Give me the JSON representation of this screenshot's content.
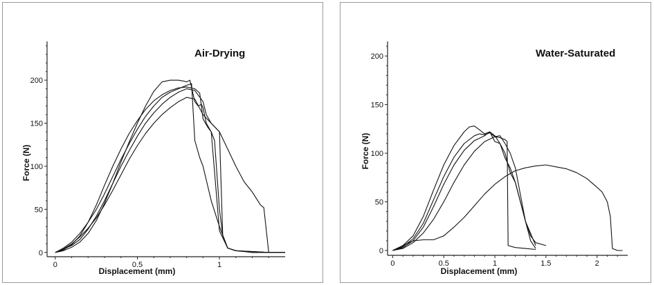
{
  "chart_data": [
    {
      "type": "line",
      "title": "Air-Drying",
      "xlabel": "Displacement (mm)",
      "ylabel": "Force (N)",
      "xlim": [
        -0.05,
        1.4
      ],
      "ylim": [
        -5,
        245
      ],
      "xticks": [
        0,
        0.5,
        1
      ],
      "xtick_labels": [
        "0",
        "0.5",
        "1"
      ],
      "yticks": [
        0,
        50,
        100,
        150,
        200
      ],
      "ytick_labels": [
        "0",
        "50",
        "100",
        "150",
        "200"
      ],
      "series": [
        {
          "x": [
            0,
            0.05,
            0.1,
            0.15,
            0.2,
            0.25,
            0.3,
            0.35,
            0.4,
            0.45,
            0.5,
            0.55,
            0.6,
            0.65,
            0.7,
            0.75,
            0.78,
            0.8,
            0.82,
            0.85,
            0.87,
            0.89,
            0.9,
            0.92,
            0.95,
            1.0,
            1.05,
            1.1,
            1.15,
            1.2,
            1.25,
            1.3,
            1.4
          ],
          "y": [
            0,
            2,
            6,
            12,
            22,
            37,
            57,
            80,
            105,
            128,
            150,
            170,
            187,
            198,
            200,
            200,
            199,
            198,
            200,
            175,
            170,
            172,
            168,
            150,
            140,
            25,
            5,
            2,
            1,
            0,
            0,
            0,
            0
          ]
        },
        {
          "x": [
            0,
            0.05,
            0.1,
            0.15,
            0.2,
            0.25,
            0.3,
            0.35,
            0.4,
            0.45,
            0.5,
            0.55,
            0.6,
            0.65,
            0.7,
            0.75,
            0.8,
            0.85,
            0.88,
            0.9,
            0.93,
            0.95,
            0.97,
            1.0,
            1.02,
            1.05,
            1.1,
            1.15,
            1.2,
            1.3,
            1.4
          ],
          "y": [
            0,
            3,
            9,
            19,
            35,
            55,
            78,
            100,
            120,
            138,
            153,
            166,
            176,
            183,
            188,
            191,
            192,
            190,
            185,
            155,
            145,
            140,
            130,
            50,
            20,
            5,
            2,
            1,
            0,
            0,
            0
          ]
        },
        {
          "x": [
            0,
            0.05,
            0.1,
            0.15,
            0.2,
            0.25,
            0.3,
            0.35,
            0.4,
            0.45,
            0.5,
            0.55,
            0.6,
            0.65,
            0.7,
            0.75,
            0.8,
            0.85,
            0.9,
            0.95,
            1.0,
            1.05,
            1.1,
            1.15,
            1.2,
            1.25,
            1.27,
            1.3,
            1.35,
            1.4
          ],
          "y": [
            0,
            4,
            10,
            18,
            28,
            40,
            55,
            72,
            90,
            108,
            124,
            138,
            150,
            160,
            168,
            175,
            180,
            178,
            160,
            150,
            140,
            120,
            100,
            82,
            70,
            55,
            52,
            0,
            0,
            0
          ]
        },
        {
          "x": [
            0,
            0.05,
            0.1,
            0.15,
            0.2,
            0.25,
            0.3,
            0.35,
            0.4,
            0.45,
            0.5,
            0.55,
            0.6,
            0.65,
            0.7,
            0.75,
            0.8,
            0.83,
            0.85,
            0.88,
            0.9,
            0.95,
            1.0,
            1.05,
            1.1,
            1.2,
            1.3,
            1.4
          ],
          "y": [
            0,
            5,
            12,
            22,
            35,
            50,
            68,
            88,
            108,
            126,
            143,
            158,
            170,
            180,
            186,
            190,
            194,
            196,
            130,
            110,
            100,
            60,
            30,
            5,
            2,
            1,
            0,
            0
          ]
        },
        {
          "x": [
            0,
            0.05,
            0.1,
            0.15,
            0.2,
            0.25,
            0.3,
            0.35,
            0.4,
            0.45,
            0.5,
            0.55,
            0.6,
            0.65,
            0.7,
            0.75,
            0.8,
            0.85,
            0.9,
            0.92,
            0.95,
            1.0,
            1.02,
            1.05,
            1.1,
            1.2,
            1.3,
            1.4
          ],
          "y": [
            0,
            4,
            8,
            15,
            27,
            42,
            60,
            80,
            100,
            118,
            135,
            150,
            162,
            172,
            180,
            186,
            190,
            188,
            175,
            160,
            150,
            140,
            20,
            5,
            2,
            1,
            0,
            0
          ]
        }
      ]
    },
    {
      "type": "line",
      "title": "Water-Saturated",
      "xlabel": "Displacement (mm)",
      "ylabel": "Force (N)",
      "xlim": [
        -0.05,
        2.3
      ],
      "ylim": [
        -5,
        215
      ],
      "xticks": [
        0,
        0.5,
        1,
        1.5,
        2
      ],
      "xtick_labels": [
        "0",
        "0.5",
        "1",
        "1.5",
        "2"
      ],
      "yticks": [
        0,
        50,
        100,
        150,
        200
      ],
      "ytick_labels": [
        "0",
        "50",
        "100",
        "150",
        "200"
      ],
      "series": [
        {
          "x": [
            0,
            0.1,
            0.2,
            0.3,
            0.4,
            0.5,
            0.6,
            0.7,
            0.75,
            0.8,
            0.85,
            0.9,
            0.95,
            1.0,
            1.05,
            1.1,
            1.15,
            1.2,
            1.25,
            1.3,
            1.35,
            1.4
          ],
          "y": [
            0,
            5,
            15,
            35,
            62,
            88,
            108,
            122,
            127,
            128,
            124,
            120,
            122,
            118,
            110,
            95,
            85,
            70,
            50,
            30,
            10,
            2
          ]
        },
        {
          "x": [
            0,
            0.1,
            0.2,
            0.3,
            0.4,
            0.5,
            0.6,
            0.7,
            0.8,
            0.85,
            0.9,
            0.95,
            1.0,
            1.05,
            1.1,
            1.12,
            1.13,
            1.2,
            1.3,
            1.4
          ],
          "y": [
            0,
            4,
            12,
            28,
            52,
            76,
            96,
            110,
            118,
            120,
            119,
            121,
            117,
            116,
            114,
            112,
            5,
            3,
            2,
            1
          ]
        },
        {
          "x": [
            0,
            0.1,
            0.2,
            0.3,
            0.4,
            0.5,
            0.6,
            0.7,
            0.8,
            0.9,
            0.95,
            1.0,
            1.05,
            1.1,
            1.15,
            1.2,
            1.25,
            1.3,
            1.35,
            1.4,
            1.5
          ],
          "y": [
            0,
            3,
            10,
            24,
            45,
            68,
            88,
            103,
            113,
            118,
            122,
            112,
            110,
            100,
            80,
            70,
            50,
            30,
            15,
            8,
            5
          ]
        },
        {
          "x": [
            0,
            0.1,
            0.2,
            0.3,
            0.4,
            0.5,
            0.6,
            0.7,
            0.8,
            0.9,
            1.0,
            1.05,
            1.1,
            1.15,
            1.2,
            1.3,
            1.4
          ],
          "y": [
            0,
            2,
            8,
            18,
            32,
            50,
            70,
            88,
            102,
            112,
            117,
            118,
            110,
            100,
            85,
            30,
            5
          ]
        },
        {
          "x": [
            0,
            0.1,
            0.2,
            0.3,
            0.4,
            0.5,
            0.6,
            0.7,
            0.8,
            0.9,
            1.0,
            1.1,
            1.2,
            1.3,
            1.4,
            1.5,
            1.6,
            1.7,
            1.8,
            1.9,
            2.0,
            2.05,
            2.1,
            2.13,
            2.15,
            2.2,
            2.25
          ],
          "y": [
            0,
            5,
            10,
            11,
            11,
            15,
            24,
            34,
            46,
            58,
            68,
            76,
            82,
            85,
            87,
            88,
            86,
            84,
            80,
            74,
            65,
            60,
            50,
            35,
            2,
            0,
            0
          ]
        }
      ]
    }
  ]
}
